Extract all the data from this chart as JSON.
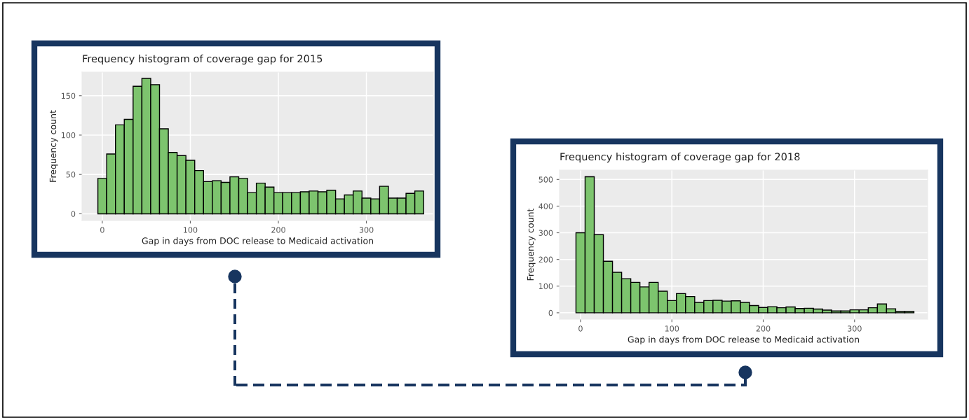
{
  "chart_data": [
    {
      "type": "histogram",
      "title": "Frequency histogram of coverage gap for 2015",
      "xlabel": "Gap in days from DOC release to Medicaid activation",
      "ylabel": "Frequency count",
      "bins": [
        -5,
        5,
        15,
        25,
        35,
        45,
        55,
        65,
        75,
        85,
        95,
        105,
        115,
        125,
        135,
        145,
        155,
        165,
        175,
        185,
        195,
        205,
        215,
        225,
        235,
        245,
        255,
        265,
        275,
        285,
        295,
        305,
        315,
        325,
        335,
        345,
        355,
        365
      ],
      "values": [
        45,
        76,
        113,
        120,
        162,
        172,
        164,
        108,
        78,
        74,
        68,
        55,
        41,
        42,
        40,
        47,
        45,
        27,
        39,
        34,
        27,
        27,
        27,
        28,
        29,
        28,
        30,
        19,
        24,
        29,
        20,
        19,
        35,
        20,
        20,
        26,
        29
      ],
      "color": "#7dc46e",
      "xlim": [
        -23,
        376
      ],
      "ylim": [
        -8.5,
        180
      ],
      "xticks": [
        0,
        100,
        200,
        300
      ],
      "yticks": [
        0,
        50,
        100,
        150
      ],
      "grid": true
    },
    {
      "type": "histogram",
      "title": "Frequency histogram of coverage gap for 2018",
      "xlabel": "Gap in days from DOC release to Medicaid activation",
      "ylabel": "Frequency count",
      "bins": [
        -5,
        5,
        15,
        25,
        35,
        45,
        55,
        65,
        75,
        85,
        95,
        105,
        115,
        125,
        135,
        145,
        155,
        165,
        175,
        185,
        195,
        205,
        215,
        225,
        235,
        245,
        255,
        265,
        275,
        285,
        295,
        305,
        315,
        325,
        335,
        345,
        355,
        365
      ],
      "values": [
        300,
        510,
        293,
        193,
        152,
        128,
        114,
        97,
        114,
        81,
        46,
        72,
        61,
        39,
        46,
        47,
        44,
        45,
        39,
        27,
        20,
        23,
        19,
        22,
        16,
        17,
        14,
        10,
        7,
        7,
        11,
        11,
        19,
        33,
        15,
        5,
        5
      ],
      "color": "#7dc46e",
      "xlim": [
        -23,
        380
      ],
      "ylim": [
        -24,
        535
      ],
      "xticks": [
        0,
        100,
        200,
        300
      ],
      "yticks": [
        0,
        100,
        200,
        300,
        400,
        500
      ],
      "grid": true
    }
  ]
}
